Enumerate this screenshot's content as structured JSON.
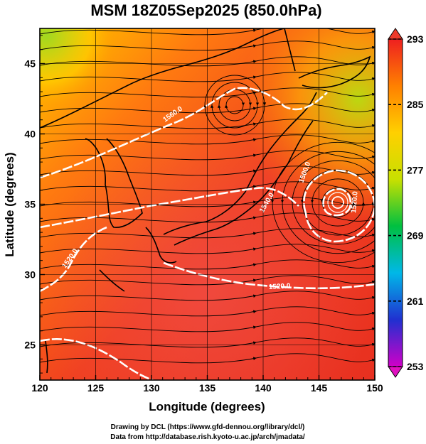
{
  "title": "MSM 18Z05Sep2025 (850.0hPa)",
  "x_axis": {
    "label": "Longitude (degrees)",
    "range": [
      120,
      150
    ],
    "ticks": [
      120,
      125,
      130,
      135,
      140,
      145,
      150
    ]
  },
  "y_axis": {
    "label": "Latitude (degrees)",
    "range": [
      22.5,
      47.5
    ],
    "ticks": [
      25,
      30,
      35,
      40,
      45
    ]
  },
  "colorbar": {
    "range": [
      253,
      293
    ],
    "ticks": [
      253,
      261,
      269,
      277,
      285,
      293
    ],
    "palette": [
      "#d000c8",
      "#2030d0",
      "#00b8e8",
      "#00c040",
      "#c8e000",
      "#ffd000",
      "#ff8000",
      "#ee2020"
    ]
  },
  "contour_labels": [
    "1560.0",
    "1540.0",
    "1520.0",
    "1520.0",
    "1520.0",
    "1500.0"
  ],
  "credits": [
    "Drawing by DCL (https://www.gfd-dennou.org/library/dcl/)",
    "Data from http://database.rish.kyoto-u.ac.jp/arch/jmadata/"
  ],
  "colors": {
    "frame": "#000000",
    "coastline": "#000000",
    "contour": "#ffffff",
    "streamline": "#000000"
  }
}
